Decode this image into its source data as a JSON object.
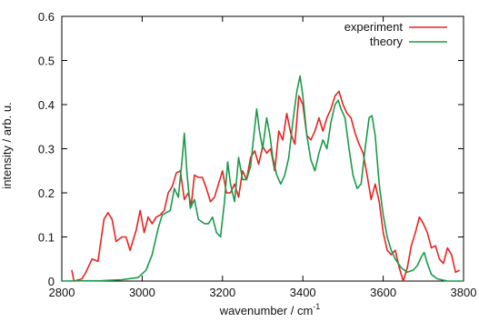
{
  "chart_data": {
    "type": "line",
    "xlabel": "wavenumber / cm",
    "xlabel_superscript": "-1",
    "ylabel": "intensity / arb. u.",
    "xlim": [
      2800,
      3800
    ],
    "ylim": [
      0,
      0.6
    ],
    "grid": false,
    "legend_position": "top-right",
    "x_ticks": [
      "2800",
      "3000",
      "3200",
      "3400",
      "3600",
      "3800"
    ],
    "y_ticks": [
      "0",
      "0.1",
      "0.2",
      "0.3",
      "0.4",
      "0.5",
      "0.6"
    ],
    "x_tick_values": [
      2800,
      3000,
      3200,
      3400,
      3600,
      3800
    ],
    "y_tick_values": [
      0,
      0.1,
      0.2,
      0.3,
      0.4,
      0.5,
      0.6
    ],
    "series": [
      {
        "name": "experiment",
        "color": "#e8231f",
        "points": [
          [
            2825,
            0.025
          ],
          [
            2830,
            0.0
          ],
          [
            2850,
            0.005
          ],
          [
            2860,
            0.02
          ],
          [
            2875,
            0.05
          ],
          [
            2890,
            0.045
          ],
          [
            2905,
            0.14
          ],
          [
            2915,
            0.155
          ],
          [
            2925,
            0.14
          ],
          [
            2935,
            0.09
          ],
          [
            2950,
            0.1
          ],
          [
            2960,
            0.1
          ],
          [
            2970,
            0.07
          ],
          [
            2985,
            0.115
          ],
          [
            2995,
            0.16
          ],
          [
            3005,
            0.11
          ],
          [
            3015,
            0.145
          ],
          [
            3025,
            0.13
          ],
          [
            3035,
            0.145
          ],
          [
            3045,
            0.15
          ],
          [
            3055,
            0.16
          ],
          [
            3065,
            0.2
          ],
          [
            3075,
            0.215
          ],
          [
            3085,
            0.245
          ],
          [
            3095,
            0.25
          ],
          [
            3105,
            0.185
          ],
          [
            3115,
            0.2
          ],
          [
            3122,
            0.17
          ],
          [
            3130,
            0.24
          ],
          [
            3140,
            0.235
          ],
          [
            3150,
            0.235
          ],
          [
            3160,
            0.21
          ],
          [
            3170,
            0.18
          ],
          [
            3180,
            0.19
          ],
          [
            3190,
            0.22
          ],
          [
            3200,
            0.25
          ],
          [
            3210,
            0.2
          ],
          [
            3220,
            0.2
          ],
          [
            3230,
            0.22
          ],
          [
            3240,
            0.19
          ],
          [
            3250,
            0.25
          ],
          [
            3260,
            0.23
          ],
          [
            3270,
            0.28
          ],
          [
            3280,
            0.295
          ],
          [
            3290,
            0.265
          ],
          [
            3300,
            0.305
          ],
          [
            3310,
            0.29
          ],
          [
            3320,
            0.3
          ],
          [
            3330,
            0.25
          ],
          [
            3340,
            0.34
          ],
          [
            3350,
            0.32
          ],
          [
            3360,
            0.38
          ],
          [
            3370,
            0.335
          ],
          [
            3380,
            0.31
          ],
          [
            3390,
            0.42
          ],
          [
            3400,
            0.4
          ],
          [
            3410,
            0.33
          ],
          [
            3420,
            0.32
          ],
          [
            3430,
            0.34
          ],
          [
            3440,
            0.37
          ],
          [
            3450,
            0.34
          ],
          [
            3460,
            0.37
          ],
          [
            3470,
            0.39
          ],
          [
            3480,
            0.42
          ],
          [
            3490,
            0.43
          ],
          [
            3500,
            0.4
          ],
          [
            3510,
            0.38
          ],
          [
            3520,
            0.37
          ],
          [
            3530,
            0.335
          ],
          [
            3540,
            0.31
          ],
          [
            3550,
            0.29
          ],
          [
            3560,
            0.24
          ],
          [
            3570,
            0.185
          ],
          [
            3580,
            0.22
          ],
          [
            3590,
            0.18
          ],
          [
            3600,
            0.11
          ],
          [
            3610,
            0.07
          ],
          [
            3620,
            0.06
          ],
          [
            3630,
            0.07
          ],
          [
            3640,
            0.03
          ],
          [
            3650,
            0.0
          ],
          [
            3660,
            0.03
          ],
          [
            3670,
            0.08
          ],
          [
            3680,
            0.11
          ],
          [
            3690,
            0.145
          ],
          [
            3700,
            0.13
          ],
          [
            3710,
            0.11
          ],
          [
            3720,
            0.075
          ],
          [
            3730,
            0.08
          ],
          [
            3740,
            0.05
          ],
          [
            3750,
            0.04
          ],
          [
            3760,
            0.075
          ],
          [
            3770,
            0.06
          ],
          [
            3780,
            0.02
          ],
          [
            3790,
            0.025
          ]
        ]
      },
      {
        "name": "theory",
        "color": "#1a9a4a",
        "points": [
          [
            2800,
            0.0
          ],
          [
            2900,
            0.001
          ],
          [
            2950,
            0.003
          ],
          [
            2990,
            0.008
          ],
          [
            3010,
            0.025
          ],
          [
            3025,
            0.06
          ],
          [
            3040,
            0.12
          ],
          [
            3050,
            0.15
          ],
          [
            3060,
            0.155
          ],
          [
            3070,
            0.16
          ],
          [
            3080,
            0.21
          ],
          [
            3090,
            0.19
          ],
          [
            3100,
            0.28
          ],
          [
            3105,
            0.335
          ],
          [
            3112,
            0.24
          ],
          [
            3120,
            0.165
          ],
          [
            3130,
            0.185
          ],
          [
            3140,
            0.14
          ],
          [
            3155,
            0.13
          ],
          [
            3165,
            0.13
          ],
          [
            3175,
            0.145
          ],
          [
            3185,
            0.11
          ],
          [
            3195,
            0.1
          ],
          [
            3205,
            0.18
          ],
          [
            3213,
            0.27
          ],
          [
            3220,
            0.22
          ],
          [
            3230,
            0.18
          ],
          [
            3240,
            0.28
          ],
          [
            3250,
            0.23
          ],
          [
            3260,
            0.23
          ],
          [
            3270,
            0.26
          ],
          [
            3278,
            0.33
          ],
          [
            3285,
            0.39
          ],
          [
            3292,
            0.34
          ],
          [
            3300,
            0.3
          ],
          [
            3310,
            0.37
          ],
          [
            3318,
            0.33
          ],
          [
            3325,
            0.28
          ],
          [
            3335,
            0.24
          ],
          [
            3345,
            0.22
          ],
          [
            3355,
            0.24
          ],
          [
            3365,
            0.28
          ],
          [
            3375,
            0.36
          ],
          [
            3385,
            0.43
          ],
          [
            3393,
            0.465
          ],
          [
            3400,
            0.42
          ],
          [
            3410,
            0.33
          ],
          [
            3420,
            0.275
          ],
          [
            3430,
            0.25
          ],
          [
            3440,
            0.29
          ],
          [
            3450,
            0.32
          ],
          [
            3460,
            0.3
          ],
          [
            3470,
            0.36
          ],
          [
            3480,
            0.4
          ],
          [
            3488,
            0.41
          ],
          [
            3495,
            0.39
          ],
          [
            3505,
            0.37
          ],
          [
            3515,
            0.3
          ],
          [
            3525,
            0.24
          ],
          [
            3535,
            0.21
          ],
          [
            3545,
            0.22
          ],
          [
            3555,
            0.3
          ],
          [
            3565,
            0.37
          ],
          [
            3572,
            0.375
          ],
          [
            3580,
            0.33
          ],
          [
            3590,
            0.22
          ],
          [
            3600,
            0.15
          ],
          [
            3610,
            0.1
          ],
          [
            3620,
            0.07
          ],
          [
            3630,
            0.05
          ],
          [
            3645,
            0.03
          ],
          [
            3660,
            0.02
          ],
          [
            3675,
            0.025
          ],
          [
            3685,
            0.035
          ],
          [
            3695,
            0.055
          ],
          [
            3702,
            0.065
          ],
          [
            3710,
            0.04
          ],
          [
            3720,
            0.015
          ],
          [
            3735,
            0.005
          ],
          [
            3760,
            0.0
          ],
          [
            3800,
            0.0
          ]
        ]
      }
    ]
  }
}
